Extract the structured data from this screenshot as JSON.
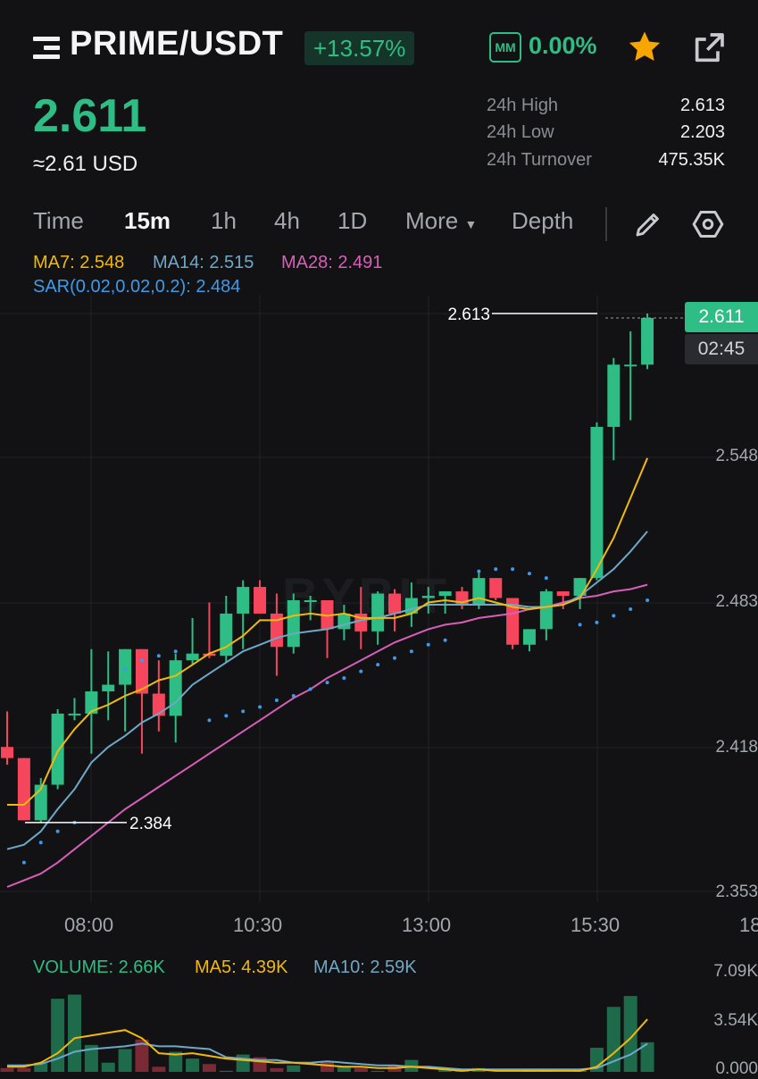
{
  "header": {
    "pair": "PRIME/USDT",
    "change": "+13.57%",
    "mm_label": "MM",
    "mm_value": "0.00%"
  },
  "ticker": {
    "last_price": "2.611",
    "usd_value": "≈2.61 USD",
    "stats": [
      {
        "label": "24h High",
        "value": "2.613"
      },
      {
        "label": "24h Low",
        "value": "2.203"
      },
      {
        "label": "24h Turnover",
        "value": "475.35K"
      }
    ]
  },
  "tabs": {
    "time": "Time",
    "m15": "15m",
    "h1": "1h",
    "h4": "4h",
    "d1": "1D",
    "more": "More",
    "depth": "Depth",
    "active": "15m"
  },
  "indicators": {
    "ma7": "MA7: 2.548",
    "ma14": "MA14: 2.515",
    "ma28": "MA28: 2.491",
    "sar": "SAR(0.02,0.02,0.2): 2.484"
  },
  "chart": {
    "current_price_tag": "2.611",
    "countdown": "02:45",
    "high_marker": "2.613",
    "low_marker": "2.384",
    "watermark": "BYBIT",
    "y_ticks": [
      "2.548",
      "2.483",
      "2.418",
      "2.353"
    ],
    "x_ticks": [
      "08:00",
      "10:30",
      "13:00",
      "15:30",
      "18"
    ],
    "volume": {
      "label": "VOLUME: 2.66K",
      "ma5": "MA5: 4.39K",
      "ma10": "MA10: 2.59K",
      "y_ticks": [
        "7.09K",
        "3.54K",
        "0.000"
      ]
    }
  },
  "colors": {
    "up": "#2ebd85",
    "down": "#f6465d",
    "ma7": "#f0b90b",
    "ma14": "#6ea8c8",
    "ma28": "#d75fb8",
    "sar": "#3d9bea",
    "star": "#f7a600"
  },
  "chart_data": {
    "type": "candlestick",
    "interval": "15m",
    "candles": [
      {
        "o": 2.418,
        "h": 2.434,
        "l": 2.41,
        "c": 2.413
      },
      {
        "o": 2.413,
        "h": 2.413,
        "l": 2.385,
        "c": 2.385
      },
      {
        "o": 2.385,
        "h": 2.404,
        "l": 2.384,
        "c": 2.401
      },
      {
        "o": 2.401,
        "h": 2.435,
        "l": 2.399,
        "c": 2.433
      },
      {
        "o": 2.433,
        "h": 2.44,
        "l": 2.43,
        "c": 2.433
      },
      {
        "o": 2.433,
        "h": 2.462,
        "l": 2.415,
        "c": 2.443
      },
      {
        "o": 2.443,
        "h": 2.461,
        "l": 2.43,
        "c": 2.446
      },
      {
        "o": 2.446,
        "h": 2.462,
        "l": 2.425,
        "c": 2.462
      },
      {
        "o": 2.462,
        "h": 2.462,
        "l": 2.415,
        "c": 2.442
      },
      {
        "o": 2.442,
        "h": 2.457,
        "l": 2.425,
        "c": 2.432
      },
      {
        "o": 2.432,
        "h": 2.46,
        "l": 2.42,
        "c": 2.457
      },
      {
        "o": 2.457,
        "h": 2.476,
        "l": 2.455,
        "c": 2.46
      },
      {
        "o": 2.46,
        "h": 2.483,
        "l": 2.458,
        "c": 2.459
      },
      {
        "o": 2.459,
        "h": 2.486,
        "l": 2.456,
        "c": 2.478
      },
      {
        "o": 2.478,
        "h": 2.493,
        "l": 2.462,
        "c": 2.49
      },
      {
        "o": 2.49,
        "h": 2.493,
        "l": 2.48,
        "c": 2.478
      },
      {
        "o": 2.478,
        "h": 2.487,
        "l": 2.45,
        "c": 2.463
      },
      {
        "o": 2.463,
        "h": 2.487,
        "l": 2.46,
        "c": 2.484
      },
      {
        "o": 2.484,
        "h": 2.486,
        "l": 2.475,
        "c": 2.484
      },
      {
        "o": 2.484,
        "h": 2.484,
        "l": 2.458,
        "c": 2.471
      },
      {
        "o": 2.471,
        "h": 2.482,
        "l": 2.466,
        "c": 2.478
      },
      {
        "o": 2.478,
        "h": 2.49,
        "l": 2.462,
        "c": 2.47
      },
      {
        "o": 2.47,
        "h": 2.488,
        "l": 2.464,
        "c": 2.487
      },
      {
        "o": 2.487,
        "h": 2.489,
        "l": 2.47,
        "c": 2.478
      },
      {
        "o": 2.478,
        "h": 2.492,
        "l": 2.472,
        "c": 2.485
      },
      {
        "o": 2.485,
        "h": 2.49,
        "l": 2.478,
        "c": 2.486
      },
      {
        "o": 2.486,
        "h": 2.488,
        "l": 2.478,
        "c": 2.488
      },
      {
        "o": 2.488,
        "h": 2.49,
        "l": 2.48,
        "c": 2.482
      },
      {
        "o": 2.482,
        "h": 2.497,
        "l": 2.48,
        "c": 2.494
      },
      {
        "o": 2.494,
        "h": 2.494,
        "l": 2.484,
        "c": 2.485
      },
      {
        "o": 2.485,
        "h": 2.485,
        "l": 2.462,
        "c": 2.464
      },
      {
        "o": 2.464,
        "h": 2.47,
        "l": 2.461,
        "c": 2.471
      },
      {
        "o": 2.471,
        "h": 2.489,
        "l": 2.466,
        "c": 2.488
      },
      {
        "o": 2.488,
        "h": 2.488,
        "l": 2.48,
        "c": 2.486
      },
      {
        "o": 2.486,
        "h": 2.494,
        "l": 2.48,
        "c": 2.494
      },
      {
        "o": 2.494,
        "h": 2.564,
        "l": 2.493,
        "c": 2.562
      },
      {
        "o": 2.562,
        "h": 2.593,
        "l": 2.547,
        "c": 2.59
      },
      {
        "o": 2.59,
        "h": 2.605,
        "l": 2.565,
        "c": 2.59
      },
      {
        "o": 2.59,
        "h": 2.613,
        "l": 2.588,
        "c": 2.611
      }
    ],
    "ma7": [
      2.392,
      2.392,
      2.399,
      2.416,
      2.426,
      2.434,
      2.437,
      2.441,
      2.444,
      2.448,
      2.45,
      2.455,
      2.46,
      2.463,
      2.468,
      2.475,
      2.475,
      2.477,
      2.478,
      2.477,
      2.478,
      2.476,
      2.476,
      2.476,
      2.478,
      2.483,
      2.484,
      2.483,
      2.485,
      2.483,
      2.481,
      2.48,
      2.481,
      2.482,
      2.485,
      2.498,
      2.512,
      2.53,
      2.548
    ],
    "ma14": [
      2.372,
      2.374,
      2.38,
      2.39,
      2.399,
      2.411,
      2.418,
      2.423,
      2.429,
      2.433,
      2.438,
      2.446,
      2.451,
      2.456,
      2.461,
      2.464,
      2.467,
      2.469,
      2.47,
      2.471,
      2.473,
      2.475,
      2.476,
      2.478,
      2.48,
      2.482,
      2.482,
      2.482,
      2.482,
      2.482,
      2.482,
      2.481,
      2.481,
      2.482,
      2.486,
      2.492,
      2.498,
      2.506,
      2.515
    ],
    "ma28": [
      2.355,
      2.358,
      2.361,
      2.366,
      2.372,
      2.378,
      2.384,
      2.39,
      2.395,
      2.4,
      2.405,
      2.41,
      2.415,
      2.42,
      2.425,
      2.43,
      2.435,
      2.44,
      2.444,
      2.449,
      2.453,
      2.457,
      2.461,
      2.465,
      2.468,
      2.471,
      2.473,
      2.474,
      2.476,
      2.477,
      2.478,
      2.48,
      2.481,
      2.483,
      2.485,
      2.486,
      2.488,
      2.489,
      2.491
    ],
    "sar": [
      null,
      2.366,
      2.375,
      2.38,
      2.384,
      null,
      null,
      2.453,
      2.457,
      2.459,
      2.461,
      null,
      2.43,
      2.432,
      2.434,
      2.436,
      2.439,
      2.441,
      2.444,
      2.447,
      2.449,
      2.452,
      2.455,
      2.458,
      2.461,
      2.464,
      2.466,
      null,
      2.497,
      2.498,
      2.498,
      2.496,
      2.494,
      null,
      2.473,
      2.474,
      2.477,
      2.48,
      2.484
    ],
    "volume_label": "VOLUME: 2.66K",
    "volume": [
      0.8,
      0.8,
      1.2,
      5.9,
      6.2,
      2.5,
      1.2,
      2.2,
      2.9,
      0.9,
      2.0,
      1.5,
      1.1,
      0.6,
      1.8,
      1.6,
      0.8,
      1.0,
      0.5,
      1.3,
      0.9,
      0.8,
      0.6,
      1.0,
      1.4,
      0.3,
      0.7,
      0.6,
      0.8,
      0.5,
      0.3,
      0.7,
      0.6,
      0.5,
      0.6,
      2.3,
      5.3,
      6.1,
      2.7
    ],
    "vol_ma5": [
      0.9,
      0.9,
      1.2,
      1.9,
      3.0,
      3.2,
      3.4,
      3.6,
      3.0,
      1.9,
      1.8,
      1.9,
      1.7,
      1.5,
      1.4,
      1.3,
      1.2,
      1.2,
      1.1,
      1.0,
      0.9,
      0.9,
      0.8,
      0.8,
      0.9,
      0.8,
      0.7,
      0.6,
      0.7,
      0.6,
      0.6,
      0.6,
      0.6,
      0.6,
      0.6,
      0.9,
      1.9,
      3.0,
      4.39
    ],
    "vol_ma10": [
      1.0,
      1.0,
      1.1,
      1.5,
      2.0,
      2.2,
      2.3,
      2.4,
      2.6,
      2.4,
      2.4,
      2.3,
      2.2,
      1.6,
      1.5,
      1.4,
      1.4,
      1.2,
      1.2,
      1.3,
      1.2,
      1.1,
      1.0,
      1.0,
      0.9,
      0.9,
      0.8,
      0.7,
      0.7,
      0.7,
      0.7,
      0.7,
      0.7,
      0.7,
      0.7,
      0.8,
      1.3,
      1.8,
      2.59
    ],
    "volume_y_range": [
      0,
      7.09
    ],
    "price_y_range": [
      2.353,
      2.613
    ]
  }
}
